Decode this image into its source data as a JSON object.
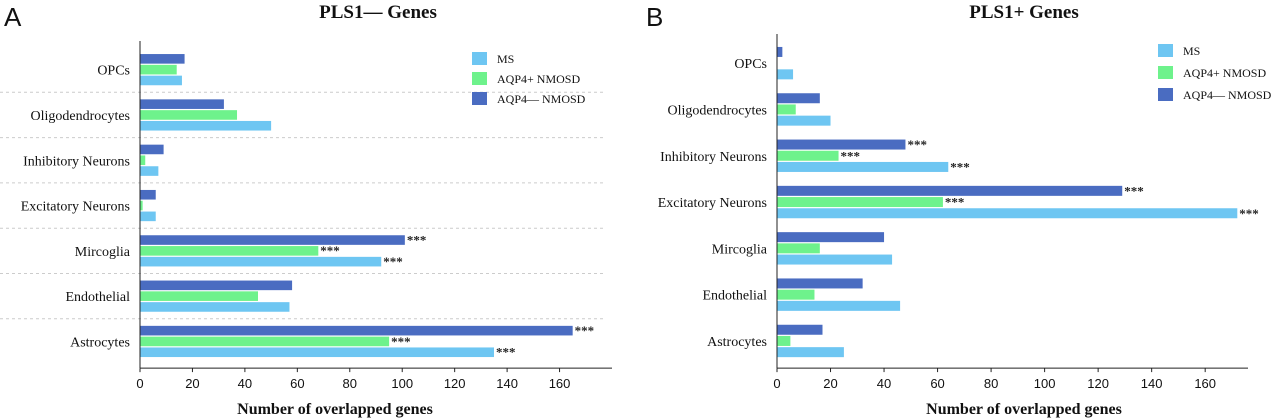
{
  "chart_data": [
    {
      "type": "bar",
      "orientation": "horizontal",
      "panel": "A",
      "title": "PLS1— Genes",
      "xlabel": "Number of overlapped genes",
      "xlim": [
        0,
        180
      ],
      "xticks": [
        0,
        20,
        40,
        60,
        80,
        100,
        120,
        140,
        160
      ],
      "categories": [
        "OPCs",
        "Oligodendrocytes",
        "Inhibitory Neurons",
        "Excitatory Neurons",
        "Mircoglia",
        "Endothelial",
        "Astrocytes"
      ],
      "series": [
        {
          "name": "MS",
          "color": "#6ec6f2",
          "values": [
            16,
            50,
            7,
            6,
            92,
            57,
            135
          ],
          "significance": [
            "",
            "",
            "",
            "",
            "***",
            "",
            "***"
          ]
        },
        {
          "name": "AQP4+ NMOSD",
          "color": "#6ef28c",
          "values": [
            14,
            37,
            2,
            1,
            68,
            45,
            95
          ],
          "significance": [
            "",
            "",
            "",
            "",
            "***",
            "",
            "***"
          ]
        },
        {
          "name": "AQP4— NMOSD",
          "color": "#4a6cc1",
          "values": [
            17,
            32,
            9,
            6,
            101,
            58,
            165
          ],
          "significance": [
            "",
            "",
            "",
            "",
            "***",
            "",
            "***"
          ]
        }
      ],
      "legend": "top-right",
      "grid": false
    },
    {
      "type": "bar",
      "orientation": "horizontal",
      "panel": "B",
      "title": "PLS1+  Genes",
      "xlabel": "Number of overlapped genes",
      "xlim": [
        0,
        176
      ],
      "xticks": [
        0,
        20,
        40,
        60,
        80,
        100,
        120,
        140,
        160
      ],
      "categories": [
        "OPCs",
        "Oligodendrocytes",
        "Inhibitory Neurons",
        "Excitatory Neurons",
        "Mircoglia",
        "Endothelial",
        "Astrocytes"
      ],
      "series": [
        {
          "name": "MS",
          "color": "#6ec6f2",
          "values": [
            6,
            20,
            64,
            172,
            43,
            46,
            25
          ],
          "significance": [
            "",
            "",
            "***",
            "***",
            "",
            "",
            ""
          ]
        },
        {
          "name": "AQP4+ NMOSD",
          "color": "#6ef28c",
          "values": [
            0,
            7,
            23,
            62,
            16,
            14,
            5
          ],
          "significance": [
            "",
            "",
            "***",
            "***",
            "",
            "",
            ""
          ]
        },
        {
          "name": "AQP4— NMOSD",
          "color": "#4a6cc1",
          "values": [
            2,
            16,
            48,
            129,
            40,
            32,
            17
          ],
          "significance": [
            "",
            "",
            "***",
            "***",
            "",
            "",
            ""
          ]
        }
      ],
      "legend": "top-right",
      "grid": false
    }
  ]
}
